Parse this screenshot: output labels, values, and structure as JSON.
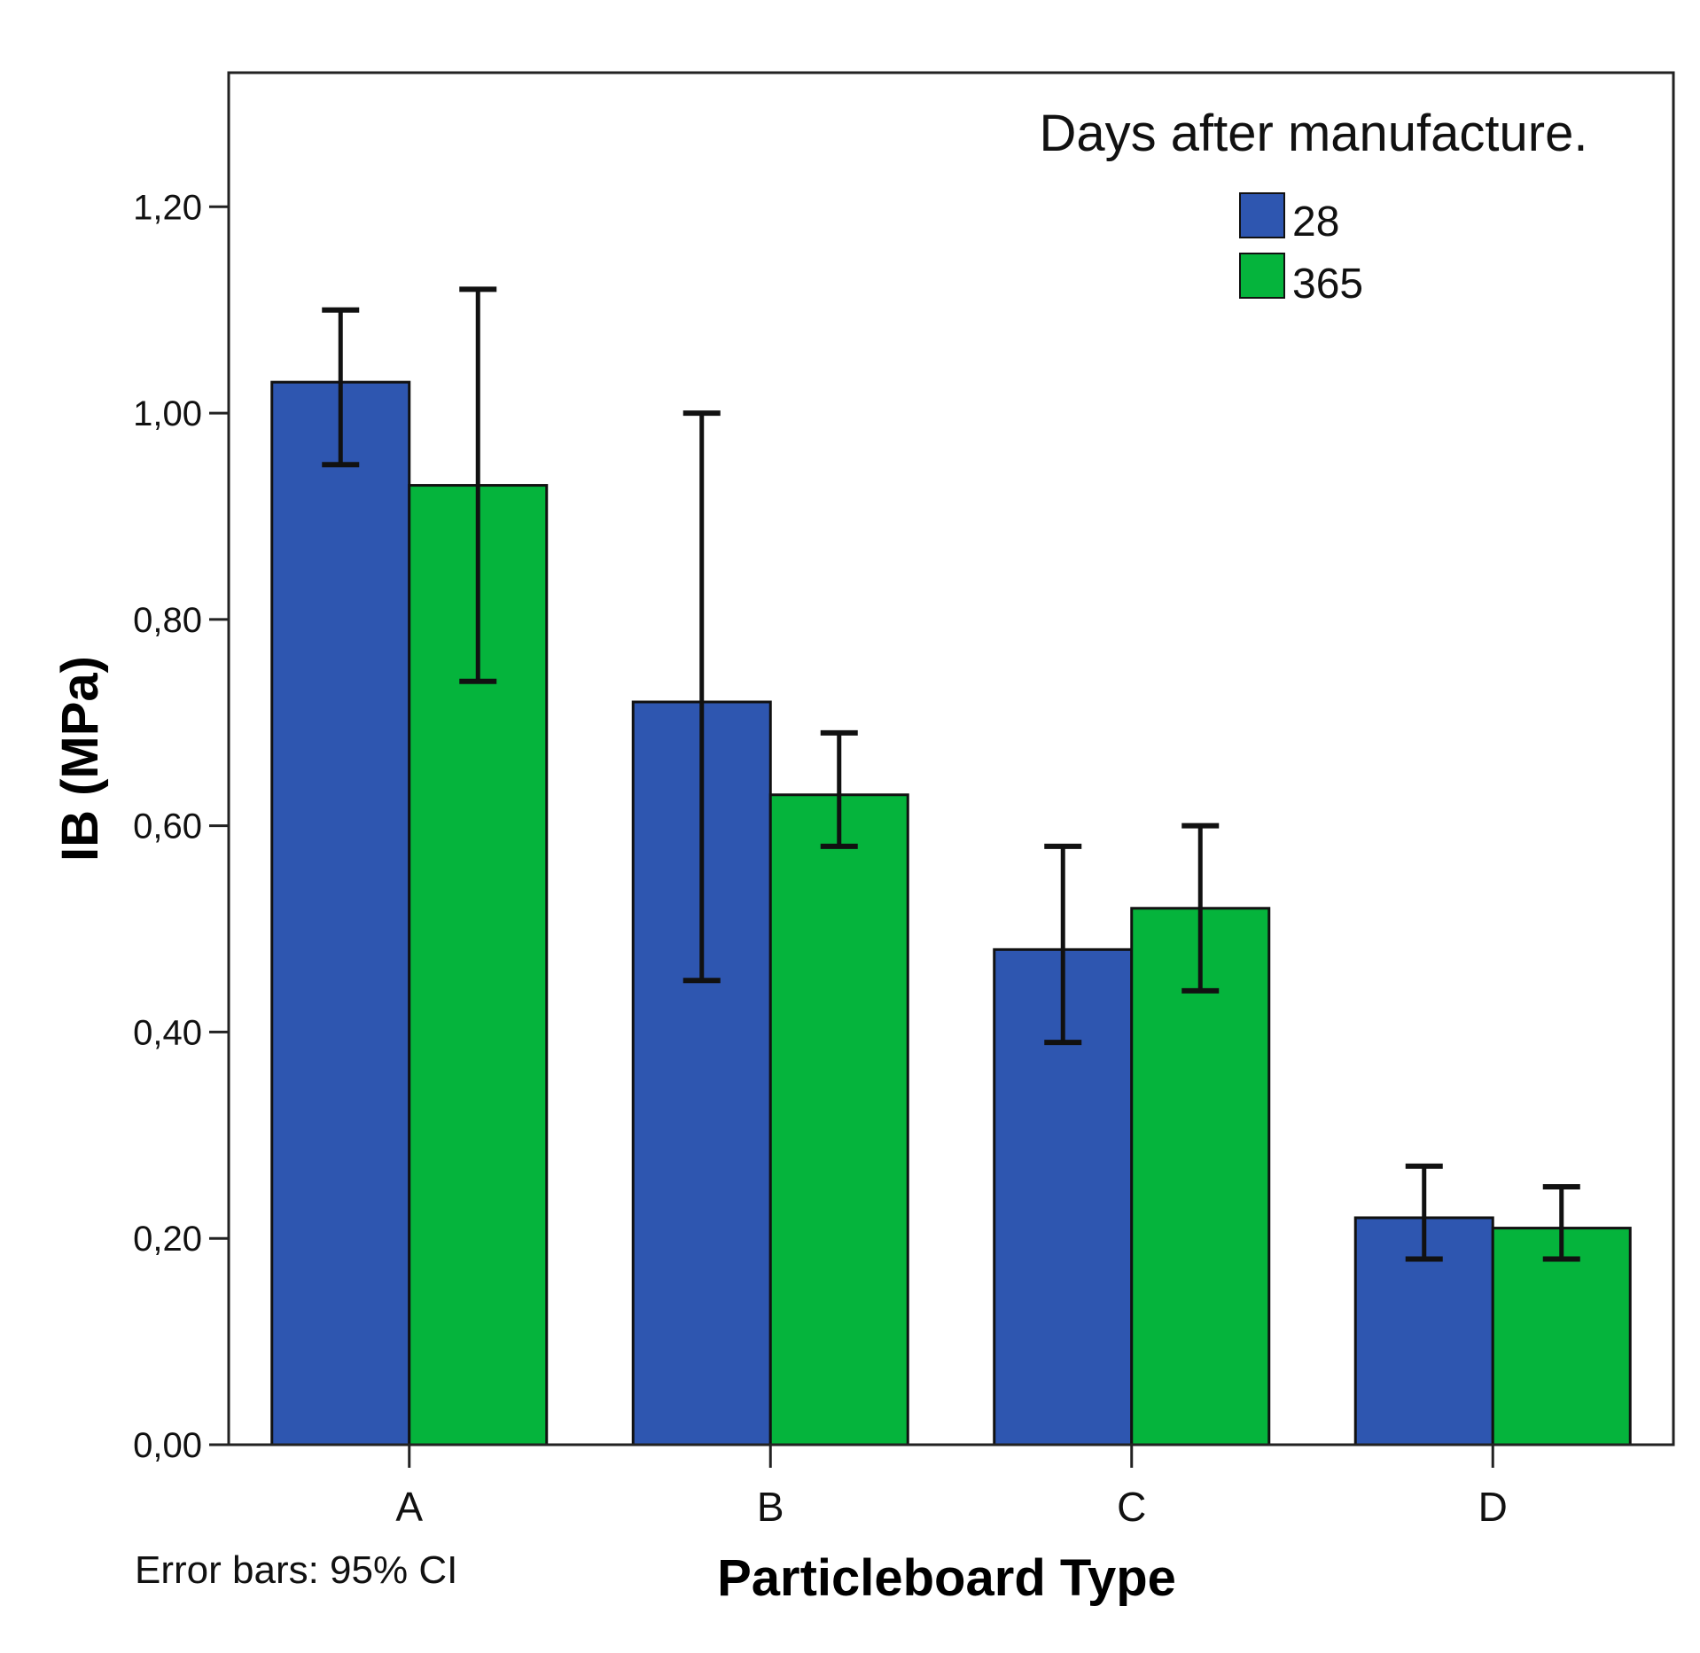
{
  "chart_data": {
    "type": "bar",
    "xlabel": "Particleboard Type",
    "ylabel": "IB (MPa)",
    "categories": [
      "A",
      "B",
      "C",
      "D"
    ],
    "ylim": [
      0,
      1.33
    ],
    "yticks": [
      0.0,
      0.2,
      0.4,
      0.6,
      0.8,
      1.0,
      1.2
    ],
    "ytick_labels": [
      "0,00",
      "0,20",
      "0,40",
      "0,60",
      "0,80",
      "1,00",
      "1,20"
    ],
    "legend_title": "Days after manufacture.",
    "legend_position": "top-right",
    "note": "Error bars: 95% CI",
    "grid": false,
    "series": [
      {
        "name": "28",
        "color": "#2e56b0",
        "values": [
          1.03,
          0.72,
          0.48,
          0.22
        ],
        "ci_low": [
          0.95,
          0.45,
          0.39,
          0.18
        ],
        "ci_high": [
          1.1,
          1.0,
          0.58,
          0.27
        ]
      },
      {
        "name": "365",
        "color": "#05b43c",
        "values": [
          0.93,
          0.63,
          0.52,
          0.21
        ],
        "ci_low": [
          0.74,
          0.58,
          0.44,
          0.18
        ],
        "ci_high": [
          1.12,
          0.69,
          0.6,
          0.25
        ]
      }
    ]
  }
}
